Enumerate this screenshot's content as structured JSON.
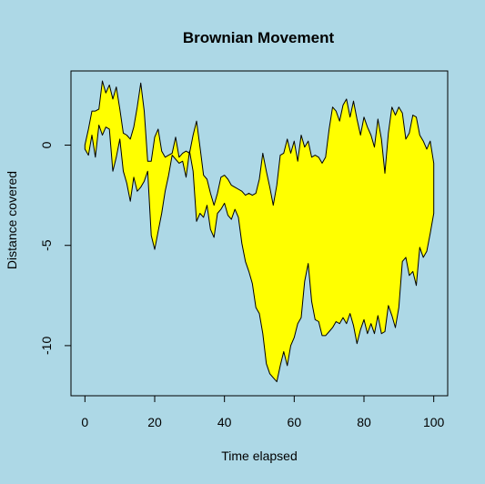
{
  "chart_data": {
    "type": "area",
    "title": "Brownian Movement",
    "xlabel": "Time elapsed",
    "ylabel": "Distance covered",
    "xlim": [
      -4,
      104
    ],
    "ylim": [
      -12.5,
      3.7
    ],
    "x_ticks": [
      0,
      20,
      40,
      60,
      80,
      100
    ],
    "x_tick_labels": [
      "0",
      "20",
      "40",
      "60",
      "80",
      "100"
    ],
    "y_ticks": [
      0,
      -5,
      -10
    ],
    "y_tick_labels": [
      "0",
      "-5",
      "-10"
    ],
    "grid": false,
    "legend": "none",
    "fill_color": "#FFFF00",
    "line_color": "#000000",
    "background_color": "#ADD8E6",
    "x": [
      0,
      1,
      2,
      3,
      4,
      5,
      6,
      7,
      8,
      9,
      10,
      11,
      12,
      13,
      14,
      15,
      16,
      17,
      18,
      19,
      20,
      21,
      22,
      23,
      24,
      25,
      26,
      27,
      28,
      29,
      30,
      31,
      32,
      33,
      34,
      35,
      36,
      37,
      38,
      39,
      40,
      41,
      42,
      43,
      44,
      45,
      46,
      47,
      48,
      49,
      50,
      51,
      52,
      53,
      54,
      55,
      56,
      57,
      58,
      59,
      60,
      61,
      62,
      63,
      64,
      65,
      66,
      67,
      68,
      69,
      70,
      71,
      72,
      73,
      74,
      75,
      76,
      77,
      78,
      79,
      80,
      81,
      82,
      83,
      84,
      85,
      86,
      87,
      88,
      89,
      90,
      91,
      92,
      93,
      94,
      95,
      96,
      97,
      98,
      99,
      100
    ],
    "series": [
      {
        "values": [
          0.0,
          0.8,
          1.7,
          1.7,
          1.8,
          3.2,
          2.6,
          3.0,
          2.3,
          2.9,
          1.8,
          0.6,
          0.5,
          0.3,
          0.9,
          1.9,
          3.1,
          1.7,
          -0.8,
          -0.8,
          0.4,
          0.8,
          -0.3,
          -0.6,
          -0.5,
          -0.4,
          0.4,
          -0.6,
          -0.4,
          -0.3,
          -0.4,
          0.5,
          1.2,
          -0.1,
          -1.5,
          -1.7,
          -2.4,
          -3.0,
          -2.4,
          -1.6,
          -1.5,
          -1.7,
          -2.0,
          -2.1,
          -2.2,
          -2.3,
          -2.5,
          -2.4,
          -2.5,
          -2.4,
          -1.7,
          -0.4,
          -1.3,
          -2.1,
          -3.0,
          -2.0,
          -0.5,
          -0.4,
          0.3,
          -0.4,
          0.2,
          -0.8,
          0.5,
          -0.1,
          0.2,
          -0.6,
          -0.5,
          -0.6,
          -0.9,
          -0.6,
          0.8,
          1.9,
          1.7,
          1.2,
          2.0,
          2.3,
          1.4,
          2.2,
          1.3,
          0.5,
          1.4,
          0.9,
          0.5,
          -0.1,
          1.3,
          0.3,
          -1.4,
          0.6,
          1.9,
          1.5,
          1.9,
          1.6,
          0.3,
          0.6,
          1.5,
          1.4,
          0.5,
          0.2,
          -0.2,
          0.2,
          -0.9
        ],
        "lower": [
          -0.2,
          -0.5,
          0.5,
          -0.6,
          1.0,
          0.5,
          0.9,
          0.8,
          -1.3,
          -0.6,
          0.3,
          -1.3,
          -1.9,
          -2.8,
          -1.6,
          -2.3,
          -2.1,
          -1.8,
          -1.3,
          -4.5,
          -5.2,
          -4.3,
          -3.4,
          -2.3,
          -1.5,
          -0.5,
          -0.7,
          -0.9,
          -0.8,
          -1.6,
          -0.3,
          -1.3,
          -3.8,
          -3.4,
          -3.6,
          -3.0,
          -4.2,
          -4.6,
          -3.4,
          -3.2,
          -2.9,
          -3.5,
          -3.7,
          -3.2,
          -3.6,
          -4.9,
          -5.8,
          -6.3,
          -6.9,
          -8.1,
          -8.4,
          -9.4,
          -10.9,
          -11.4,
          -11.6,
          -11.8,
          -11.0,
          -10.3,
          -11.0,
          -10.0,
          -9.6,
          -8.9,
          -8.6,
          -6.8,
          -5.9,
          -7.8,
          -8.7,
          -8.8,
          -9.5,
          -9.5,
          -9.3,
          -9.1,
          -8.8,
          -8.9,
          -8.6,
          -8.9,
          -8.4,
          -9.0,
          -9.9,
          -9.2,
          -8.7,
          -9.4,
          -8.9,
          -9.4,
          -8.5,
          -9.4,
          -9.3,
          -8.0,
          -8.5,
          -9.1,
          -8.1,
          -5.8,
          -5.6,
          -6.5,
          -6.3,
          -7.0,
          -5.1,
          -5.6,
          -5.3,
          -4.4,
          -3.4
        ]
      }
    ]
  }
}
